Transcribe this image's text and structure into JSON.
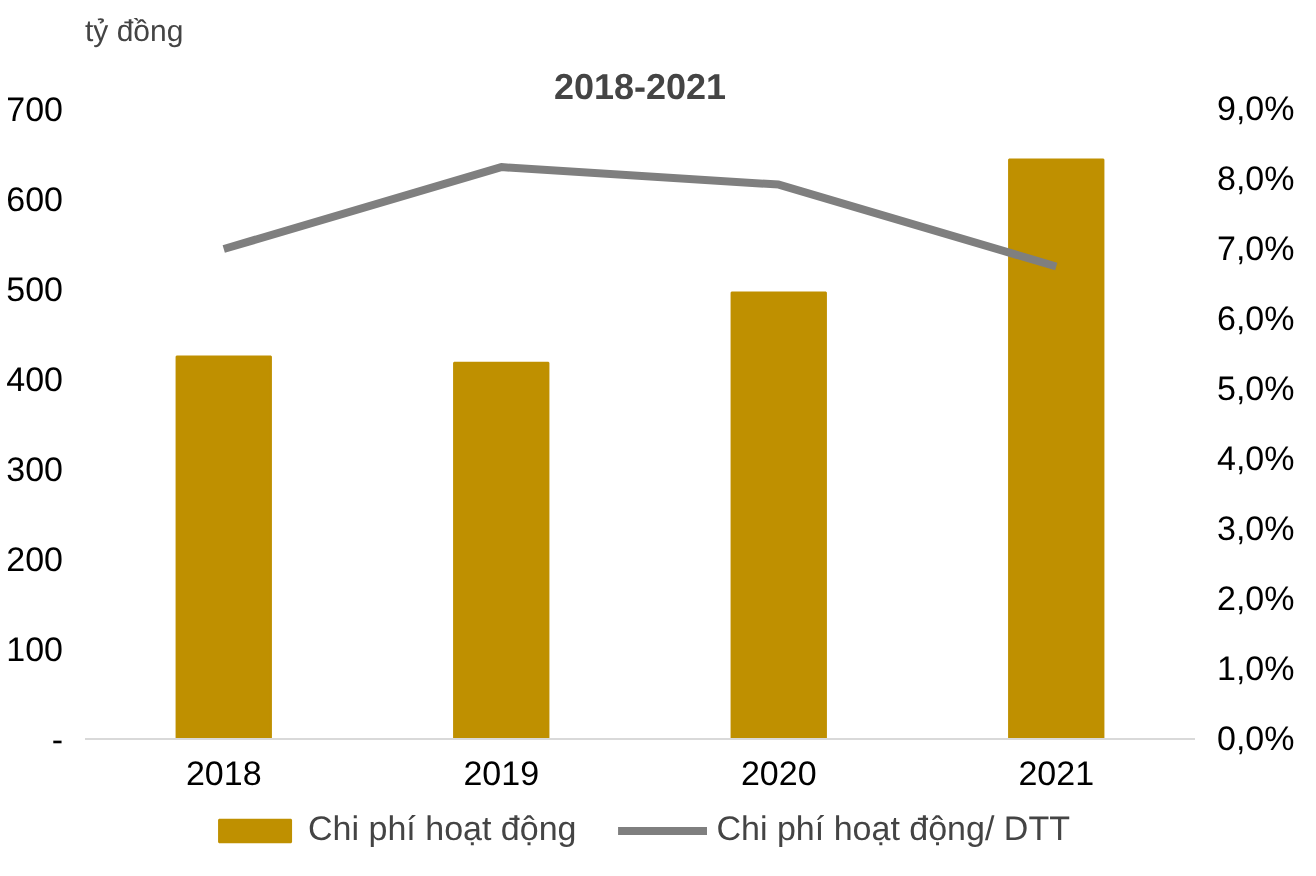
{
  "chart_data": {
    "type": "bar",
    "title": "2018-2021",
    "ylabel": "tỷ đồng",
    "categories": [
      "2018",
      "2019",
      "2020",
      "2021"
    ],
    "series": [
      {
        "name": "Chi phí hoạt động",
        "color": "#bf9000",
        "values": [
          425,
          418,
          496,
          644
        ]
      },
      {
        "name": "Chi phí hoạt động/ DTT",
        "color": "#7f7f7f",
        "type": "line",
        "axis": "y2",
        "values": [
          7.0,
          8.17,
          7.92,
          6.75
        ]
      }
    ],
    "ylim": [
      0,
      700
    ],
    "yticks": [
      {
        "value": 0,
        "label": "-"
      },
      100,
      200,
      300,
      400,
      500,
      600,
      700
    ],
    "y2lim": [
      0,
      9
    ],
    "y2ticks": [
      {
        "value": 0,
        "label": "0,0%"
      },
      {
        "value": 1,
        "label": "1,0%"
      },
      {
        "value": 2,
        "label": "2,0%"
      },
      {
        "value": 3,
        "label": "3,0%"
      },
      {
        "value": 4,
        "label": "4,0%"
      },
      {
        "value": 5,
        "label": "5,0%"
      },
      {
        "value": 6,
        "label": "6,0%"
      },
      {
        "value": 7,
        "label": "7,0%"
      },
      {
        "value": 8,
        "label": "8,0%"
      },
      {
        "value": 9,
        "label": "9,0%"
      }
    ],
    "grid": false,
    "legend": "bottom"
  }
}
